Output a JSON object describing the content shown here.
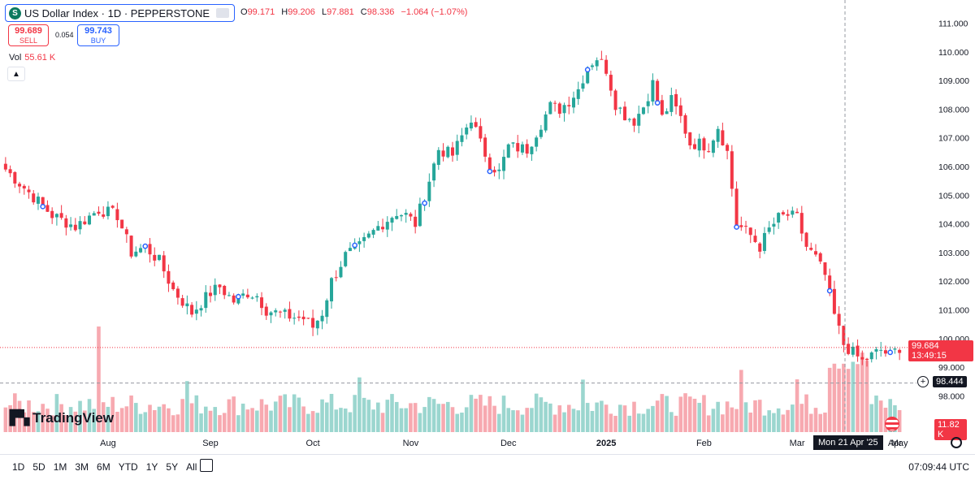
{
  "header": {
    "symbol_icon": "S",
    "title": "US Dollar Index · 1D · PEPPERSTONE",
    "ohlc": {
      "o_label": "O",
      "o": "99.171",
      "h_label": "H",
      "h": "99.206",
      "l_label": "L",
      "l": "97.881",
      "c_label": "C",
      "c": "98.336",
      "chg": "−1.064 (−1.07%)"
    },
    "sell_price": "99.689",
    "sell_label": "SELL",
    "buy_price": "99.743",
    "buy_label": "BUY",
    "spread": "0.054",
    "vol_label": "Vol",
    "vol_value": "55.61 K",
    "collapse_icon": "chevron-up-icon"
  },
  "logo_text": "TradingView",
  "price_tags": {
    "last": "99.684",
    "countdown": "13:49:15",
    "crosshair": "98.444",
    "volume": "11.82 K"
  },
  "crosshair_date": "Mon 21 Apr '25",
  "ranges": [
    "1D",
    "5D",
    "1M",
    "3M",
    "6M",
    "YTD",
    "1Y",
    "5Y",
    "All"
  ],
  "clock": "07:09:44 UTC",
  "colors": {
    "up": "#26a69a",
    "down": "#f23645",
    "vol_up": "#9bd6cf",
    "vol_down": "#f7a9b0",
    "accent": "#2962ff"
  },
  "chart_data": {
    "type": "candlestick",
    "y_ticks": [
      "111.000",
      "110.000",
      "109.000",
      "108.000",
      "107.000",
      "106.000",
      "105.000",
      "104.000",
      "103.000",
      "102.000",
      "101.000",
      "100.000",
      "99.000",
      "98.000"
    ],
    "ylim": [
      97.5,
      111.3
    ],
    "x_ticks": [
      "Aug",
      "Sep",
      "Oct",
      "Nov",
      "Dec",
      "2025",
      "Feb",
      "Mar",
      "Apr",
      "May"
    ],
    "close_path": [
      [
        0,
        105.9
      ],
      [
        5,
        105.1
      ],
      [
        10,
        104.3
      ],
      [
        15,
        103.9
      ],
      [
        20,
        104.5
      ],
      [
        24,
        104.3
      ],
      [
        27,
        103.0
      ],
      [
        30,
        103.2
      ],
      [
        33,
        102.7
      ],
      [
        36,
        101.7
      ],
      [
        40,
        100.9
      ],
      [
        44,
        101.6
      ],
      [
        46,
        101.8
      ],
      [
        49,
        101.3
      ],
      [
        52,
        101.6
      ],
      [
        54,
        101.5
      ],
      [
        56,
        101.0
      ],
      [
        60,
        100.8
      ],
      [
        64,
        100.7
      ],
      [
        66,
        100.4
      ],
      [
        68,
        100.9
      ],
      [
        70,
        102.0
      ],
      [
        73,
        102.9
      ],
      [
        76,
        103.2
      ],
      [
        80,
        103.9
      ],
      [
        84,
        104.4
      ],
      [
        86,
        104.3
      ],
      [
        88,
        104.0
      ],
      [
        90,
        105.0
      ],
      [
        93,
        106.6
      ],
      [
        96,
        106.4
      ],
      [
        100,
        107.7
      ],
      [
        102,
        106.8
      ],
      [
        104,
        106.1
      ],
      [
        106,
        105.8
      ],
      [
        108,
        106.7
      ],
      [
        112,
        106.6
      ],
      [
        114,
        107.2
      ],
      [
        117,
        108.1
      ],
      [
        119,
        108.0
      ],
      [
        121,
        108.3
      ],
      [
        123,
        108.7
      ],
      [
        125,
        109.5
      ],
      [
        127,
        109.8
      ],
      [
        129,
        109.4
      ],
      [
        131,
        108.2
      ],
      [
        133,
        107.8
      ],
      [
        135,
        107.6
      ],
      [
        137,
        108.1
      ],
      [
        139,
        108.9
      ],
      [
        141,
        107.7
      ],
      [
        143,
        108.3
      ],
      [
        145,
        107.7
      ],
      [
        147,
        106.8
      ],
      [
        149,
        106.8
      ],
      [
        151,
        106.7
      ],
      [
        153,
        107.4
      ],
      [
        155,
        106.5
      ],
      [
        157,
        104.0
      ],
      [
        160,
        103.6
      ],
      [
        162,
        103.2
      ],
      [
        164,
        103.8
      ],
      [
        166,
        104.2
      ],
      [
        168,
        104.3
      ],
      [
        170,
        104.2
      ],
      [
        172,
        103.2
      ],
      [
        174,
        102.8
      ],
      [
        176,
        102.2
      ],
      [
        178,
        100.8
      ],
      [
        180,
        99.8
      ],
      [
        182,
        99.5
      ],
      [
        184,
        99.2
      ],
      [
        186,
        99.4
      ],
      [
        188,
        99.6
      ],
      [
        190,
        99.4
      ],
      [
        192,
        99.7
      ]
    ],
    "circle_markers": [
      8,
      30,
      50,
      75,
      90,
      104,
      125,
      140,
      157,
      177,
      190
    ]
  }
}
